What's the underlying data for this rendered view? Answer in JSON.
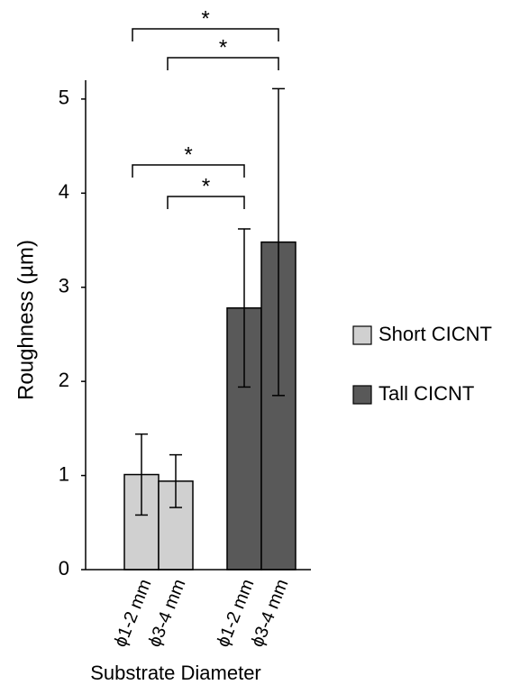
{
  "chart_data": {
    "type": "bar",
    "y_label": "Roughness (µm)",
    "x_label": "Substrate Diameter",
    "categories": [
      "ϕ1-2 mm",
      "ϕ3-4 mm",
      "ϕ1-2 mm",
      "ϕ3-4 mm"
    ],
    "series": [
      {
        "name": "Short CICNT",
        "color": "#d0d0d0",
        "values": [
          1.01,
          0.94,
          null,
          null
        ],
        "errors": [
          0.43,
          0.28,
          null,
          null
        ]
      },
      {
        "name": "Tall CICNT",
        "color": "#595959",
        "values": [
          null,
          null,
          2.78,
          3.48
        ],
        "errors": [
          null,
          null,
          0.84,
          1.63
        ]
      }
    ],
    "ylim": [
      0,
      5.2
    ],
    "yticks": [
      0,
      1,
      2,
      3,
      4,
      5
    ],
    "significance": [
      {
        "from": 0,
        "to": 3,
        "label": "*"
      },
      {
        "from": 1,
        "to": 3,
        "label": "*"
      },
      {
        "from": 0,
        "to": 2,
        "label": "*"
      },
      {
        "from": 1,
        "to": 2,
        "label": "*"
      }
    ],
    "legend": "right"
  }
}
